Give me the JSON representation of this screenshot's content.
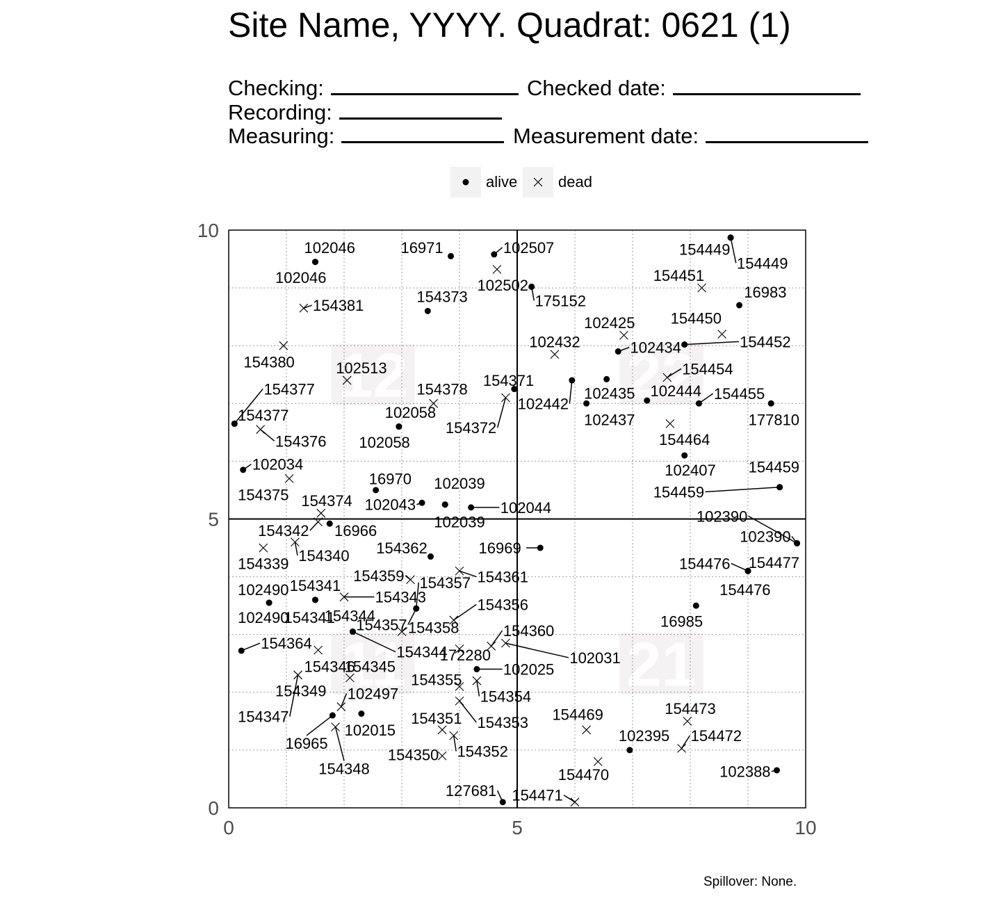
{
  "header": {
    "title": "Site Name, YYYY. Quadrat: 0621 (1)",
    "fields": {
      "checking": "Checking:",
      "checked_date": "Checked date:",
      "recording": "Recording:",
      "measuring": "Measuring:",
      "measurement_date": "Measurement date:"
    }
  },
  "legend": {
    "alive": "alive",
    "dead": "dead"
  },
  "footer": {
    "spillover": "Spillover: None."
  },
  "chart_data": {
    "type": "scatter",
    "xlim": [
      0,
      10
    ],
    "ylim": [
      0,
      10
    ],
    "x_ticks": [
      "0",
      "5",
      "10"
    ],
    "y_ticks": [
      "0",
      "5",
      "10"
    ],
    "grid": true,
    "legend_position": "top",
    "subquadrats": [
      {
        "label": "12",
        "x": 2.5,
        "y": 7.5
      },
      {
        "label": "22",
        "x": 7.5,
        "y": 7.5
      },
      {
        "label": "11",
        "x": 2.5,
        "y": 2.5
      },
      {
        "label": "21",
        "x": 7.5,
        "y": 2.5
      }
    ],
    "points": [
      {
        "id": "102046",
        "s": "alive",
        "x": 1.5,
        "y": 9.45,
        "lx": 1.75,
        "ly": 9.7
      },
      {
        "id": "102046",
        "s": "alive",
        "x": 1.5,
        "y": 9.45,
        "lx": 1.25,
        "ly": 9.18
      },
      {
        "id": "16971",
        "s": "alive",
        "x": 3.85,
        "y": 9.55,
        "lx": 3.35,
        "ly": 9.7
      },
      {
        "id": "102507",
        "s": "alive",
        "x": 4.6,
        "y": 9.58,
        "lx": 5.2,
        "ly": 9.7
      },
      {
        "id": "102502",
        "s": "dead",
        "x": 4.65,
        "y": 9.32,
        "lx": 4.75,
        "ly": 9.05
      },
      {
        "id": "175152",
        "s": "alive",
        "x": 5.25,
        "y": 9.02,
        "lx": 5.75,
        "ly": 8.78
      },
      {
        "id": "154373",
        "s": "alive",
        "x": 3.45,
        "y": 8.6,
        "lx": 3.7,
        "ly": 8.85
      },
      {
        "id": "154381",
        "s": "dead",
        "x": 1.3,
        "y": 8.65,
        "lx": 1.9,
        "ly": 8.7
      },
      {
        "id": "154449",
        "s": "alive",
        "x": 8.7,
        "y": 9.87,
        "lx": 8.25,
        "ly": 9.67
      },
      {
        "id": "154449",
        "s": "alive",
        "x": 8.7,
        "y": 9.87,
        "lx": 9.25,
        "ly": 9.43
      },
      {
        "id": "154451",
        "s": "dead",
        "x": 8.2,
        "y": 9.0,
        "lx": 7.8,
        "ly": 9.22
      },
      {
        "id": "16983",
        "s": "alive",
        "x": 8.85,
        "y": 8.7,
        "lx": 9.3,
        "ly": 8.93
      },
      {
        "id": "154450",
        "s": "dead",
        "x": 8.55,
        "y": 8.2,
        "lx": 8.1,
        "ly": 8.48
      },
      {
        "id": "154452",
        "s": "alive",
        "x": 7.9,
        "y": 8.02,
        "lx": 9.3,
        "ly": 8.07
      },
      {
        "id": "102425",
        "s": "dead",
        "x": 6.85,
        "y": 8.18,
        "lx": 6.6,
        "ly": 8.4
      },
      {
        "id": "102434",
        "s": "alive",
        "x": 6.75,
        "y": 7.9,
        "lx": 7.4,
        "ly": 7.97
      },
      {
        "id": "154454",
        "s": "dead",
        "x": 7.6,
        "y": 7.45,
        "lx": 8.3,
        "ly": 7.6
      },
      {
        "id": "102432",
        "s": "dead",
        "x": 5.65,
        "y": 7.85,
        "lx": 5.65,
        "ly": 8.07
      },
      {
        "id": "102435",
        "s": "alive",
        "x": 6.55,
        "y": 7.42,
        "lx": 6.6,
        "ly": 7.18
      },
      {
        "id": "102442",
        "s": "alive",
        "x": 5.95,
        "y": 7.4,
        "lx": 5.45,
        "ly": 7.0
      },
      {
        "id": "102437",
        "s": "alive",
        "x": 6.2,
        "y": 7.0,
        "lx": 6.6,
        "ly": 6.72
      },
      {
        "id": "102444",
        "s": "alive",
        "x": 7.25,
        "y": 7.05,
        "lx": 7.75,
        "ly": 7.22
      },
      {
        "id": "154455",
        "s": "alive",
        "x": 8.15,
        "y": 7.0,
        "lx": 8.85,
        "ly": 7.17
      },
      {
        "id": "177810",
        "s": "alive",
        "x": 9.4,
        "y": 7.0,
        "lx": 9.45,
        "ly": 6.72
      },
      {
        "id": "154464",
        "s": "dead",
        "x": 7.65,
        "y": 6.65,
        "lx": 7.9,
        "ly": 6.38
      },
      {
        "id": "102407",
        "s": "alive",
        "x": 7.9,
        "y": 6.1,
        "lx": 8.0,
        "ly": 5.85
      },
      {
        "id": "154459",
        "s": "alive",
        "x": 9.55,
        "y": 5.55,
        "lx": 9.45,
        "ly": 5.9
      },
      {
        "id": "154459",
        "s": "alive",
        "x": 9.55,
        "y": 5.55,
        "lx": 7.8,
        "ly": 5.47
      },
      {
        "id": "102390",
        "s": "alive",
        "x": 9.85,
        "y": 4.58,
        "lx": 8.55,
        "ly": 5.05
      },
      {
        "id": "102390",
        "s": "alive",
        "x": 9.85,
        "y": 4.58,
        "lx": 9.3,
        "ly": 4.7
      },
      {
        "id": "154477",
        "s": "alive",
        "x": 9.0,
        "y": 4.1,
        "lx": 9.45,
        "ly": 4.25
      },
      {
        "id": "154476",
        "s": "alive",
        "x": 9.0,
        "y": 4.1,
        "lx": 8.25,
        "ly": 4.23
      },
      {
        "id": "154476",
        "s": "alive",
        "x": 9.0,
        "y": 4.1,
        "lx": 8.95,
        "ly": 3.78
      },
      {
        "id": "16985",
        "s": "alive",
        "x": 8.1,
        "y": 3.5,
        "lx": 7.85,
        "ly": 3.23
      },
      {
        "id": "102513",
        "s": "dead",
        "x": 2.05,
        "y": 7.4,
        "lx": 2.3,
        "ly": 7.62
      },
      {
        "id": "154378",
        "s": "dead",
        "x": 3.55,
        "y": 7.0,
        "lx": 3.7,
        "ly": 7.25
      },
      {
        "id": "154371",
        "s": "alive",
        "x": 4.95,
        "y": 7.25,
        "lx": 4.85,
        "ly": 7.4
      },
      {
        "id": "154372",
        "s": "dead",
        "x": 4.8,
        "y": 7.1,
        "lx": 4.2,
        "ly": 6.58
      },
      {
        "id": "102058",
        "s": "alive",
        "x": 2.95,
        "y": 6.6,
        "lx": 3.15,
        "ly": 6.85
      },
      {
        "id": "102058",
        "s": "alive",
        "x": 2.95,
        "y": 6.6,
        "lx": 2.7,
        "ly": 6.33
      },
      {
        "id": "154380",
        "s": "dead",
        "x": 0.95,
        "y": 8.0,
        "lx": 0.7,
        "ly": 7.72
      },
      {
        "id": "154377",
        "s": "alive",
        "x": 0.1,
        "y": 6.65,
        "lx": 1.05,
        "ly": 7.25
      },
      {
        "id": "154377",
        "s": "alive",
        "x": 0.1,
        "y": 6.65,
        "lx": 0.6,
        "ly": 6.8
      },
      {
        "id": "154376",
        "s": "dead",
        "x": 0.55,
        "y": 6.55,
        "lx": 1.25,
        "ly": 6.35
      },
      {
        "id": "102034",
        "s": "alive",
        "x": 0.25,
        "y": 5.85,
        "lx": 0.85,
        "ly": 5.95
      },
      {
        "id": "154375",
        "s": "dead",
        "x": 1.05,
        "y": 5.7,
        "lx": 0.6,
        "ly": 5.42
      },
      {
        "id": "16970",
        "s": "alive",
        "x": 2.55,
        "y": 5.5,
        "lx": 2.8,
        "ly": 5.7
      },
      {
        "id": "102039",
        "s": "alive",
        "x": 3.75,
        "y": 5.25,
        "lx": 4.0,
        "ly": 5.62
      },
      {
        "id": "102039",
        "s": "alive",
        "x": 3.75,
        "y": 5.25,
        "lx": 4.0,
        "ly": 4.95
      },
      {
        "id": "102043",
        "s": "alive",
        "x": 3.35,
        "y": 5.28,
        "lx": 2.8,
        "ly": 5.25
      },
      {
        "id": "102044",
        "s": "alive",
        "x": 4.2,
        "y": 5.2,
        "lx": 5.15,
        "ly": 5.2
      },
      {
        "id": "154374",
        "s": "dead",
        "x": 1.6,
        "y": 5.1,
        "lx": 1.7,
        "ly": 5.32
      },
      {
        "id": "154342",
        "s": "dead",
        "x": 1.55,
        "y": 4.95,
        "lx": 0.95,
        "ly": 4.8
      },
      {
        "id": "16966",
        "s": "alive",
        "x": 1.75,
        "y": 4.92,
        "lx": 2.2,
        "ly": 4.8
      },
      {
        "id": "154339",
        "s": "dead",
        "x": 0.6,
        "y": 4.5,
        "lx": 0.6,
        "ly": 4.23
      },
      {
        "id": "154340",
        "s": "dead",
        "x": 1.15,
        "y": 4.6,
        "lx": 1.65,
        "ly": 4.37
      },
      {
        "id": "154362",
        "s": "alive",
        "x": 3.5,
        "y": 4.35,
        "lx": 3.0,
        "ly": 4.5
      },
      {
        "id": "16969",
        "s": "alive",
        "x": 5.4,
        "y": 4.5,
        "lx": 4.7,
        "ly": 4.5
      },
      {
        "id": "154361",
        "s": "dead",
        "x": 4.0,
        "y": 4.1,
        "lx": 4.75,
        "ly": 4.0
      },
      {
        "id": "154359",
        "s": "dead",
        "x": 3.15,
        "y": 3.95,
        "lx": 2.6,
        "ly": 4.02
      },
      {
        "id": "154357",
        "s": "alive",
        "x": 3.25,
        "y": 3.45,
        "lx": 3.75,
        "ly": 3.9
      },
      {
        "id": "102490",
        "s": "alive",
        "x": 0.7,
        "y": 3.55,
        "lx": 0.6,
        "ly": 3.78
      },
      {
        "id": "102490",
        "s": "alive",
        "x": 0.7,
        "y": 3.55,
        "lx": 0.6,
        "ly": 3.3
      },
      {
        "id": "154341",
        "s": "alive",
        "x": 1.5,
        "y": 3.6,
        "lx": 1.5,
        "ly": 3.85
      },
      {
        "id": "154341",
        "s": "alive",
        "x": 1.5,
        "y": 3.6,
        "lx": 1.4,
        "ly": 3.3
      },
      {
        "id": "154343",
        "s": "dead",
        "x": 2.0,
        "y": 3.65,
        "lx": 2.98,
        "ly": 3.65
      },
      {
        "id": "154344",
        "s": "alive",
        "x": 2.15,
        "y": 3.05,
        "lx": 2.1,
        "ly": 3.33
      },
      {
        "id": "154344",
        "s": "alive",
        "x": 2.15,
        "y": 3.05,
        "lx": 3.35,
        "ly": 2.7
      },
      {
        "id": "154357",
        "s": "alive",
        "x": 3.25,
        "y": 3.45,
        "lx": 2.65,
        "ly": 3.17
      },
      {
        "id": "154358",
        "s": "dead",
        "x": 3.0,
        "y": 3.05,
        "lx": 3.55,
        "ly": 3.12
      },
      {
        "id": "154356",
        "s": "dead",
        "x": 3.9,
        "y": 3.25,
        "lx": 4.75,
        "ly": 3.52
      },
      {
        "id": "154360",
        "s": "dead",
        "x": 4.55,
        "y": 2.8,
        "lx": 5.2,
        "ly": 3.07
      },
      {
        "id": "172280",
        "s": "dead",
        "x": 4.0,
        "y": 2.75,
        "lx": 4.1,
        "ly": 2.65
      },
      {
        "id": "102031",
        "s": "dead",
        "x": 4.8,
        "y": 2.85,
        "lx": 6.35,
        "ly": 2.6
      },
      {
        "id": "154364",
        "s": "alive",
        "x": 0.22,
        "y": 2.72,
        "lx": 1.0,
        "ly": 2.85
      },
      {
        "id": "154346",
        "s": "dead",
        "x": 1.55,
        "y": 2.73,
        "lx": 1.75,
        "ly": 2.45
      },
      {
        "id": "154345",
        "s": "dead",
        "x": 2.1,
        "y": 2.25,
        "lx": 2.45,
        "ly": 2.45
      },
      {
        "id": "102025",
        "s": "alive",
        "x": 4.3,
        "y": 2.4,
        "lx": 5.2,
        "ly": 2.4
      },
      {
        "id": "154355",
        "s": "dead",
        "x": 4.0,
        "y": 2.1,
        "lx": 3.6,
        "ly": 2.22
      },
      {
        "id": "154354",
        "s": "dead",
        "x": 4.3,
        "y": 2.2,
        "lx": 4.8,
        "ly": 1.93
      },
      {
        "id": "154349",
        "s": "dead",
        "x": 1.2,
        "y": 2.3,
        "lx": 1.25,
        "ly": 2.03
      },
      {
        "id": "154347",
        "s": "dead",
        "x": 1.2,
        "y": 2.3,
        "lx": 0.6,
        "ly": 1.58
      },
      {
        "id": "102497",
        "s": "dead",
        "x": 1.95,
        "y": 1.75,
        "lx": 2.5,
        "ly": 1.98
      },
      {
        "id": "16965",
        "s": "alive",
        "x": 1.8,
        "y": 1.6,
        "lx": 1.35,
        "ly": 1.12
      },
      {
        "id": "102015",
        "s": "alive",
        "x": 2.3,
        "y": 1.63,
        "lx": 2.45,
        "ly": 1.35
      },
      {
        "id": "154348",
        "s": "dead",
        "x": 1.85,
        "y": 1.4,
        "lx": 2.0,
        "ly": 0.68
      },
      {
        "id": "154351",
        "s": "dead",
        "x": 3.7,
        "y": 1.35,
        "lx": 3.6,
        "ly": 1.55
      },
      {
        "id": "154353",
        "s": "dead",
        "x": 4.0,
        "y": 1.85,
        "lx": 4.75,
        "ly": 1.48
      },
      {
        "id": "154352",
        "s": "dead",
        "x": 3.9,
        "y": 1.25,
        "lx": 4.4,
        "ly": 0.98
      },
      {
        "id": "154350",
        "s": "dead",
        "x": 3.7,
        "y": 0.9,
        "lx": 3.2,
        "ly": 0.92
      },
      {
        "id": "154469",
        "s": "dead",
        "x": 6.2,
        "y": 1.35,
        "lx": 6.05,
        "ly": 1.62
      },
      {
        "id": "102395",
        "s": "alive",
        "x": 6.95,
        "y": 1.0,
        "lx": 7.2,
        "ly": 1.25
      },
      {
        "id": "154473",
        "s": "dead",
        "x": 7.95,
        "y": 1.5,
        "lx": 8.0,
        "ly": 1.72
      },
      {
        "id": "154472",
        "s": "dead",
        "x": 7.85,
        "y": 1.03,
        "lx": 8.45,
        "ly": 1.25
      },
      {
        "id": "154470",
        "s": "dead",
        "x": 6.4,
        "y": 0.8,
        "lx": 6.15,
        "ly": 0.58
      },
      {
        "id": "102388",
        "s": "alive",
        "x": 9.5,
        "y": 0.65,
        "lx": 8.95,
        "ly": 0.63
      },
      {
        "id": "127681",
        "s": "alive",
        "x": 4.75,
        "y": 0.1,
        "lx": 4.2,
        "ly": 0.3
      },
      {
        "id": "154471",
        "s": "dead",
        "x": 6.0,
        "y": 0.1,
        "lx": 5.35,
        "ly": 0.22
      }
    ]
  }
}
